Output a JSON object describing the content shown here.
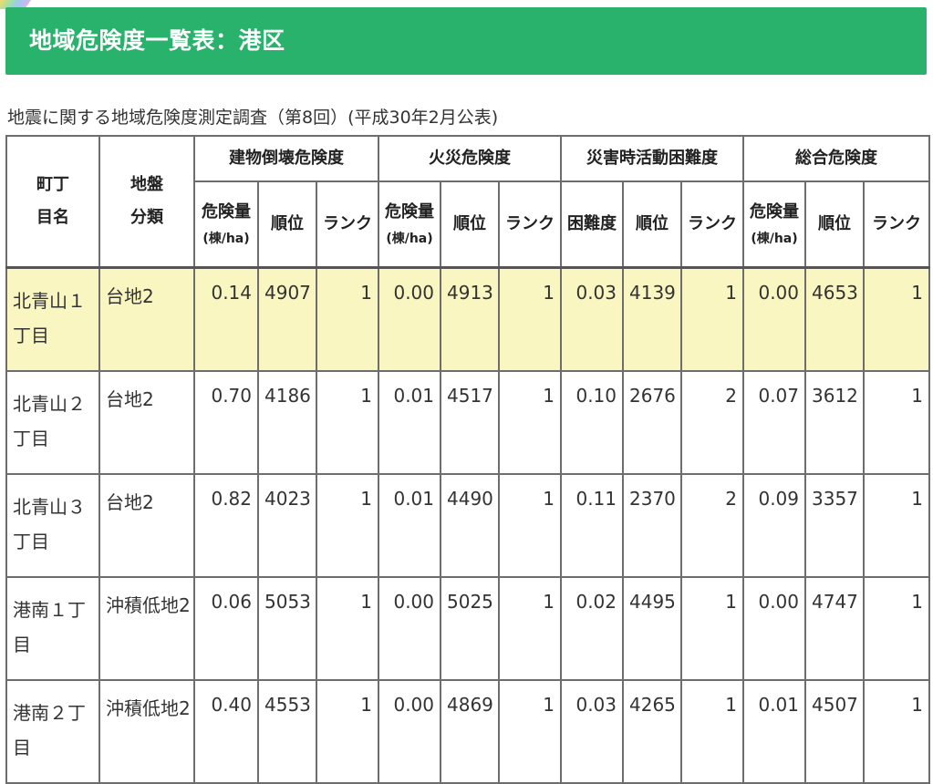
{
  "page": {
    "title": "地域危険度一覧表：港区",
    "subtitle": "地震に関する地域危険度測定調査（第8回）(平成30年2月公表)"
  },
  "table": {
    "headers": {
      "town": [
        "町丁",
        "目名"
      ],
      "ground": [
        "地盤",
        "分類"
      ],
      "building": "建物倒壊危険度",
      "fire": "火災危険度",
      "disaster": "災害時活動困難度",
      "total": "総合危険度",
      "risk_amount": "危険量",
      "unit": "(棟/ha)",
      "rank_order": "順位",
      "rank": "ランク",
      "difficulty": "困難度"
    },
    "rows": [
      {
        "name": "北青山１丁目",
        "ground": "台地2",
        "b_val": "0.14",
        "b_order": "4907",
        "b_rank": "1",
        "f_val": "0.00",
        "f_order": "4913",
        "f_rank": "1",
        "d_val": "0.03",
        "d_order": "4139",
        "d_rank": "1",
        "t_val": "0.00",
        "t_order": "4653",
        "t_rank": "1"
      },
      {
        "name": "北青山２丁目",
        "ground": "台地2",
        "b_val": "0.70",
        "b_order": "4186",
        "b_rank": "1",
        "f_val": "0.01",
        "f_order": "4517",
        "f_rank": "1",
        "d_val": "0.10",
        "d_order": "2676",
        "d_rank": "2",
        "t_val": "0.07",
        "t_order": "3612",
        "t_rank": "1"
      },
      {
        "name": "北青山３丁目",
        "ground": "台地2",
        "b_val": "0.82",
        "b_order": "4023",
        "b_rank": "1",
        "f_val": "0.01",
        "f_order": "4490",
        "f_rank": "1",
        "d_val": "0.11",
        "d_order": "2370",
        "d_rank": "2",
        "t_val": "0.09",
        "t_order": "3357",
        "t_rank": "1"
      },
      {
        "name": "港南１丁目",
        "ground": "沖積低地2",
        "b_val": "0.06",
        "b_order": "5053",
        "b_rank": "1",
        "f_val": "0.00",
        "f_order": "5025",
        "f_rank": "1",
        "d_val": "0.02",
        "d_order": "4495",
        "d_rank": "1",
        "t_val": "0.00",
        "t_order": "4747",
        "t_rank": "1"
      },
      {
        "name": "港南２丁目",
        "ground": "沖積低地2",
        "b_val": "0.40",
        "b_order": "4553",
        "b_rank": "1",
        "f_val": "0.00",
        "f_order": "4869",
        "f_rank": "1",
        "d_val": "0.03",
        "d_order": "4265",
        "d_rank": "1",
        "t_val": "0.01",
        "t_order": "4507",
        "t_rank": "1"
      }
    ]
  },
  "colors": {
    "banner": "#29b26c",
    "highlight_row": "#f9f6c2",
    "border": "#6d6d6d"
  }
}
